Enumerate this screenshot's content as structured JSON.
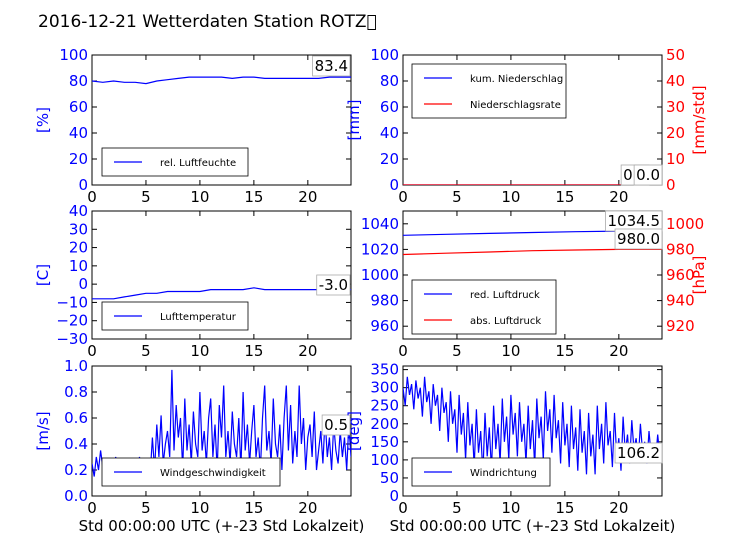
{
  "page": {
    "title": "2016-12-21 Wetterdaten Station ROTZ\u0000"
  },
  "colors": {
    "left_axis": "#0000ff",
    "right_axis": "#ff0000",
    "series_a": "#0000ff",
    "series_b": "#ff0000",
    "grid_text": "#000000"
  },
  "chart_data": [
    {
      "id": "humidity",
      "type": "line",
      "xlim": [
        0,
        24
      ],
      "xticks": [
        "0",
        "5",
        "10",
        "15",
        "20"
      ],
      "xlabel": "",
      "ylim": [
        0,
        100
      ],
      "yticks": [
        "0",
        "20",
        "40",
        "60",
        "80",
        "100"
      ],
      "ylabel": "[%]",
      "legend": {
        "placement": "lower-left",
        "entries": [
          "rel. Luftfeuchte"
        ]
      },
      "series": [
        {
          "name": "rel. Luftfeuchte",
          "x": [
            0,
            1,
            2,
            3,
            4,
            5,
            6,
            7,
            8,
            9,
            10,
            11,
            12,
            13,
            14,
            15,
            16,
            17,
            18,
            19,
            20,
            21,
            22,
            23,
            24
          ],
          "values": [
            80,
            79,
            80,
            79,
            79,
            78,
            80,
            81,
            82,
            83,
            83,
            83,
            83,
            82,
            83,
            83,
            82,
            82,
            82,
            82,
            82,
            82,
            83,
            83,
            83
          ]
        }
      ],
      "annotations": [
        {
          "text": "83.4"
        }
      ]
    },
    {
      "id": "precip",
      "type": "line",
      "xlim": [
        0,
        24
      ],
      "xticks": [
        "0",
        "5",
        "10",
        "15",
        "20"
      ],
      "xlabel": "",
      "ylim": [
        0,
        100
      ],
      "yticks": [
        "0",
        "20",
        "40",
        "60",
        "80",
        "100"
      ],
      "ylabel": "[mm]",
      "y2lim": [
        0,
        50
      ],
      "y2ticks": [
        "0",
        "10",
        "20",
        "30",
        "40",
        "50"
      ],
      "y2label": "[mm/std]",
      "legend": {
        "placement": "upper-left",
        "entries": [
          "kum. Niederschlag",
          "Niederschlagsrate"
        ]
      },
      "series": [
        {
          "name": "kum. Niederschlag",
          "axis": "left",
          "x": [
            0,
            24
          ],
          "values": [
            0,
            0
          ]
        },
        {
          "name": "Niederschlagsrate",
          "axis": "right",
          "x": [
            0,
            24
          ],
          "values": [
            0,
            0
          ]
        }
      ],
      "annotations": [
        {
          "text": "0.0"
        },
        {
          "text": "0.0"
        }
      ]
    },
    {
      "id": "temperature",
      "type": "line",
      "xlim": [
        0,
        24
      ],
      "xticks": [
        "0",
        "5",
        "10",
        "15",
        "20"
      ],
      "xlabel": "",
      "ylim": [
        -30,
        40
      ],
      "yticks": [
        "−30",
        "−20",
        "−10",
        "0",
        "10",
        "20",
        "30",
        "40"
      ],
      "ylabel": "[C]",
      "legend": {
        "placement": "lower-left",
        "entries": [
          "Lufttemperatur"
        ]
      },
      "series": [
        {
          "name": "Lufttemperatur",
          "x": [
            0,
            1,
            2,
            3,
            4,
            5,
            6,
            7,
            8,
            9,
            10,
            11,
            12,
            13,
            14,
            15,
            16,
            17,
            18,
            19,
            20,
            21,
            22,
            23,
            24
          ],
          "values": [
            -8,
            -8,
            -8,
            -7,
            -6,
            -5,
            -5,
            -4,
            -4,
            -4,
            -4,
            -3,
            -3,
            -3,
            -3,
            -2,
            -3,
            -3,
            -3,
            -3,
            -3,
            -3,
            -3,
            -3,
            -3
          ]
        }
      ],
      "annotations": [
        {
          "text": "-3.0"
        }
      ]
    },
    {
      "id": "pressure",
      "type": "line",
      "xlim": [
        0,
        24
      ],
      "xticks": [
        "0",
        "5",
        "10",
        "15",
        "20"
      ],
      "xlabel": "",
      "ylim": [
        950,
        1050
      ],
      "yticks": [
        "960",
        "980",
        "1000",
        "1020",
        "1040"
      ],
      "ylabel": "",
      "y2lim": [
        910,
        1010
      ],
      "y2ticks": [
        "920",
        "940",
        "960",
        "980",
        "1000"
      ],
      "y2label": "[hPa]",
      "legend": {
        "placement": "lower-left",
        "entries": [
          "red. Luftdruck",
          "abs. Luftdruck"
        ]
      },
      "series": [
        {
          "name": "red. Luftdruck",
          "axis": "left",
          "x": [
            0,
            4,
            8,
            12,
            16,
            20,
            24
          ],
          "values": [
            1031,
            1031.8,
            1032.5,
            1033.2,
            1033.8,
            1034.3,
            1034.5
          ]
        },
        {
          "name": "abs. Luftdruck",
          "axis": "right",
          "x": [
            0,
            4,
            8,
            12,
            16,
            20,
            24
          ],
          "values": [
            976,
            977,
            978,
            979,
            979.5,
            980,
            980
          ]
        }
      ],
      "annotations": [
        {
          "text": "1034.5"
        },
        {
          "text": "980.0"
        }
      ]
    },
    {
      "id": "windspeed",
      "type": "line",
      "xlim": [
        0,
        24
      ],
      "xticks": [
        "0",
        "5",
        "10",
        "15",
        "20"
      ],
      "xlabel": "Std 00:00:00 UTC (+-23 Std Lokalzeit)",
      "ylim": [
        0,
        1.0
      ],
      "yticks": [
        "0.0",
        "0.2",
        "0.4",
        "0.6",
        "0.8",
        "1.0"
      ],
      "ylabel": "[m/s]",
      "legend": {
        "placement": "lower-left",
        "entries": [
          "Windgeschwindigkeit"
        ]
      },
      "series": [
        {
          "name": "Windgeschwindigkeit",
          "x": [
            0,
            0.2,
            0.4,
            0.6,
            0.8,
            1,
            1.2,
            1.4,
            1.6,
            1.8,
            2,
            2.2,
            2.4,
            2.6,
            2.8,
            3,
            3.2,
            3.4,
            3.6,
            3.8,
            4,
            4.2,
            4.4,
            4.6,
            4.8,
            5,
            5.2,
            5.4,
            5.6,
            5.8,
            6,
            6.2,
            6.4,
            6.6,
            6.8,
            7,
            7.2,
            7.4,
            7.6,
            7.8,
            8,
            8.2,
            8.4,
            8.6,
            8.8,
            9,
            9.2,
            9.4,
            9.6,
            9.8,
            10,
            10.2,
            10.4,
            10.6,
            10.8,
            11,
            11.2,
            11.4,
            11.6,
            11.8,
            12,
            12.2,
            12.4,
            12.6,
            12.8,
            13,
            13.2,
            13.4,
            13.6,
            13.8,
            14,
            14.2,
            14.4,
            14.6,
            14.8,
            15,
            15.2,
            15.4,
            15.6,
            15.8,
            16,
            16.2,
            16.4,
            16.6,
            16.8,
            17,
            17.2,
            17.4,
            17.6,
            17.8,
            18,
            18.2,
            18.4,
            18.6,
            18.8,
            19,
            19.2,
            19.4,
            19.6,
            19.8,
            20,
            20.2,
            20.4,
            20.6,
            20.8,
            21,
            21.2,
            21.4,
            21.6,
            21.8,
            22,
            22.2,
            22.4,
            22.6,
            22.8,
            23,
            23.2,
            23.4,
            23.6,
            23.8,
            24
          ],
          "values": [
            0.25,
            0.15,
            0.3,
            0.2,
            0.35,
            0.22,
            0.18,
            0.28,
            0.15,
            0.25,
            0.2,
            0.3,
            0.18,
            0.25,
            0.15,
            0.22,
            0.12,
            0.28,
            0.2,
            0.15,
            0.25,
            0.18,
            0.3,
            0.15,
            0.2,
            0.1,
            0.25,
            0.18,
            0.45,
            0.2,
            0.55,
            0.3,
            0.62,
            0.25,
            0.4,
            0.5,
            0.3,
            0.97,
            0.35,
            0.7,
            0.45,
            0.6,
            0.2,
            0.75,
            0.35,
            0.55,
            0.25,
            0.65,
            0.4,
            0.3,
            0.8,
            0.35,
            0.5,
            0.25,
            0.6,
            0.75,
            0.3,
            0.55,
            0.2,
            0.7,
            0.45,
            0.85,
            0.3,
            0.5,
            0.25,
            0.65,
            0.4,
            0.3,
            0.6,
            0.2,
            0.8,
            0.35,
            0.55,
            0.25,
            0.5,
            0.7,
            0.3,
            0.45,
            0.2,
            0.6,
            0.85,
            0.35,
            0.5,
            0.25,
            0.75,
            0.4,
            0.3,
            0.55,
            0.2,
            0.6,
            0.85,
            0.35,
            0.7,
            0.25,
            0.5,
            0.3,
            0.85,
            0.4,
            0.6,
            0.2,
            0.45,
            0.55,
            0.3,
            0.65,
            0.2,
            0.35,
            0.5,
            0.25,
            0.6,
            0.3,
            0.45,
            0.2,
            0.55,
            0.35,
            0.25,
            0.5,
            0.3,
            0.45,
            0.2,
            0.55,
            0.3
          ]
        }
      ],
      "annotations": [
        {
          "text": "0.5"
        }
      ]
    },
    {
      "id": "winddir",
      "type": "line",
      "xlim": [
        0,
        24
      ],
      "xticks": [
        "0",
        "5",
        "10",
        "15",
        "20"
      ],
      "xlabel": "Std 00:00:00 UTC (+-23 Std Lokalzeit)",
      "ylim": [
        0,
        360
      ],
      "yticks": [
        "0",
        "50",
        "100",
        "150",
        "200",
        "250",
        "300",
        "350"
      ],
      "ylabel": "[deg]",
      "legend": {
        "placement": "lower-left",
        "entries": [
          "Windrichtung"
        ]
      },
      "series": [
        {
          "name": "Windrichtung",
          "x": [
            0,
            0.2,
            0.4,
            0.6,
            0.8,
            1,
            1.2,
            1.4,
            1.6,
            1.8,
            2,
            2.2,
            2.4,
            2.6,
            2.8,
            3,
            3.2,
            3.4,
            3.6,
            3.8,
            4,
            4.2,
            4.4,
            4.6,
            4.8,
            5,
            5.2,
            5.4,
            5.6,
            5.8,
            6,
            6.2,
            6.4,
            6.6,
            6.8,
            7,
            7.2,
            7.4,
            7.6,
            7.8,
            8,
            8.2,
            8.4,
            8.6,
            8.8,
            9,
            9.2,
            9.4,
            9.6,
            9.8,
            10,
            10.2,
            10.4,
            10.6,
            10.8,
            11,
            11.2,
            11.4,
            11.6,
            11.8,
            12,
            12.2,
            12.4,
            12.6,
            12.8,
            13,
            13.2,
            13.4,
            13.6,
            13.8,
            14,
            14.2,
            14.4,
            14.6,
            14.8,
            15,
            15.2,
            15.4,
            15.6,
            15.8,
            16,
            16.2,
            16.4,
            16.6,
            16.8,
            17,
            17.2,
            17.4,
            17.6,
            17.8,
            18,
            18.2,
            18.4,
            18.6,
            18.8,
            19,
            19.2,
            19.4,
            19.6,
            19.8,
            20,
            20.2,
            20.4,
            20.6,
            20.8,
            21,
            21.2,
            21.4,
            21.6,
            21.8,
            22,
            22.2,
            22.4,
            22.6,
            22.8,
            23,
            23.2,
            23.4,
            23.6,
            23.8,
            24
          ],
          "values": [
            300,
            250,
            330,
            280,
            310,
            240,
            320,
            270,
            300,
            220,
            330,
            260,
            290,
            200,
            310,
            250,
            280,
            180,
            300,
            230,
            260,
            150,
            290,
            200,
            240,
            120,
            280,
            170,
            230,
            100,
            260,
            140,
            200,
            80,
            240,
            120,
            180,
            60,
            230,
            110,
            190,
            70,
            250,
            130,
            200,
            90,
            270,
            150,
            220,
            100,
            280,
            170,
            230,
            110,
            260,
            150,
            200,
            90,
            250,
            130,
            210,
            80,
            270,
            160,
            220,
            100,
            290,
            180,
            240,
            120,
            280,
            160,
            210,
            90,
            260,
            140,
            200,
            80,
            250,
            130,
            190,
            70,
            240,
            120,
            180,
            60,
            230,
            110,
            170,
            60,
            250,
            130,
            200,
            90,
            260,
            140,
            180,
            80,
            230,
            110,
            160,
            70,
            220,
            120,
            170,
            90,
            210,
            130,
            160,
            100,
            200,
            120,
            150,
            90,
            180,
            110,
            140,
            100,
            170,
            110,
            130
          ]
        }
      ],
      "annotations": [
        {
          "text": "106.2"
        }
      ]
    }
  ]
}
